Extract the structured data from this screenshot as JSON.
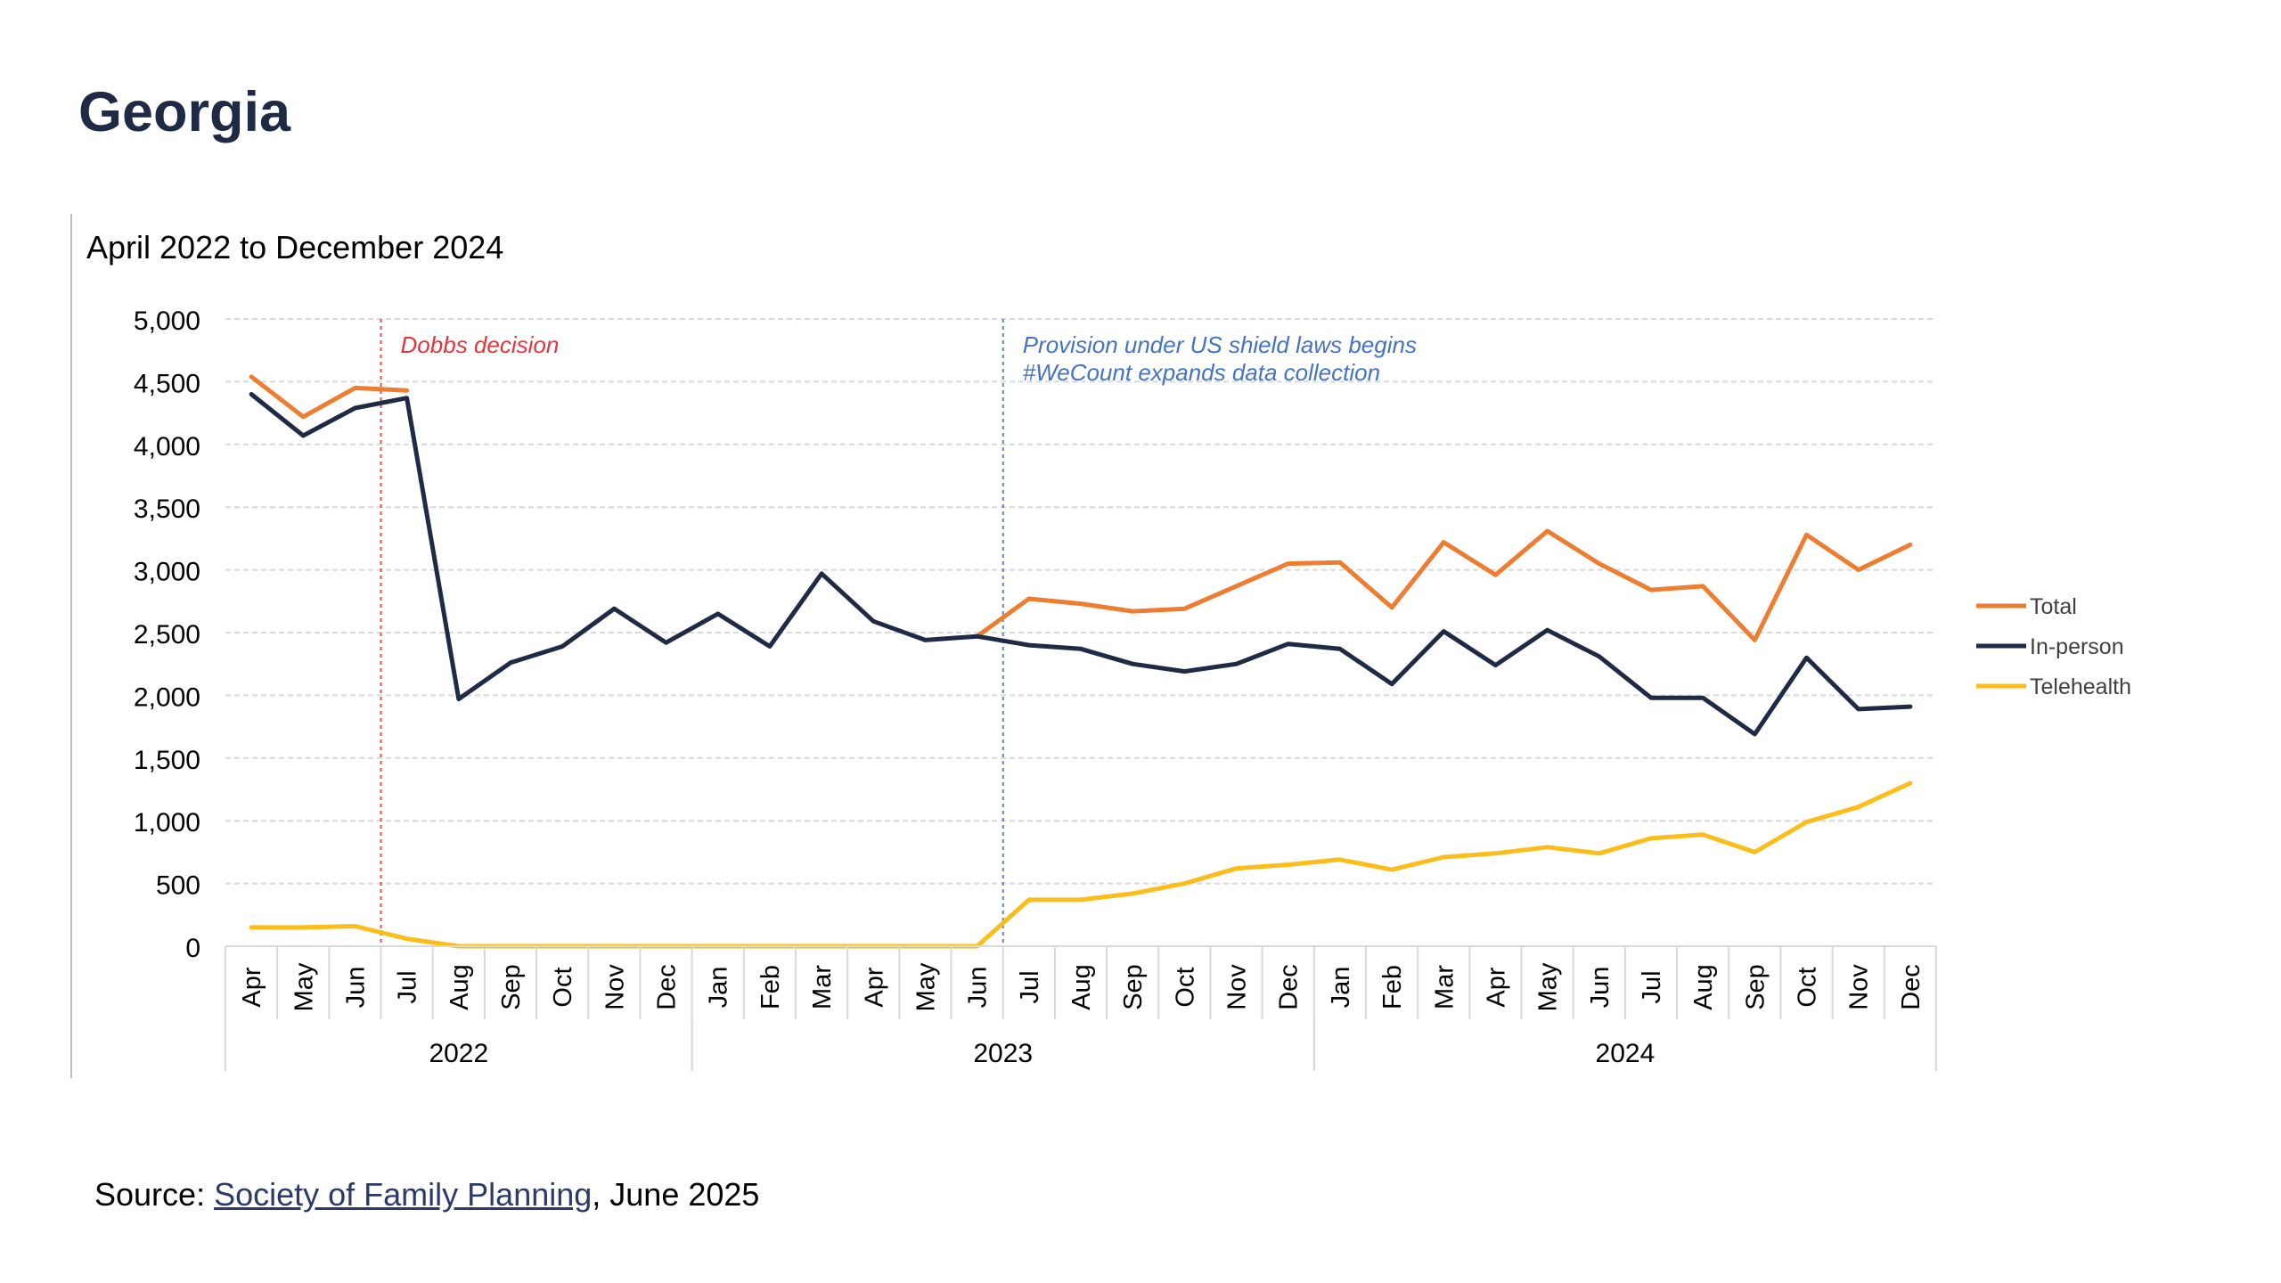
{
  "page": {
    "title": "Georgia"
  },
  "source": {
    "prefix": "Source: ",
    "link_text": "Society of Family Planning",
    "suffix": ", June 2025"
  },
  "colors": {
    "total": "#ee7d31",
    "in_person": "#1f2a44",
    "telehealth": "#fbbd1a",
    "dobbs_line": "#e8323c",
    "shield_line": "#4472c4",
    "grid": "#d9d9d9",
    "axis_text": "#000000"
  },
  "chart_data": {
    "type": "line",
    "title": "April 2022 to December 2024",
    "ylim": [
      0,
      5000
    ],
    "yticks": [
      0,
      500,
      1000,
      1500,
      2000,
      2500,
      3000,
      3500,
      4000,
      4500,
      5000
    ],
    "ytick_labels": [
      "0",
      "500",
      "1,000",
      "1,500",
      "2,000",
      "2,500",
      "3,000",
      "3,500",
      "4,000",
      "4,500",
      "5,000"
    ],
    "grid": true,
    "legend_position": "right",
    "categories": [
      "Apr",
      "May",
      "Jun",
      "Jul",
      "Aug",
      "Sep",
      "Oct",
      "Nov",
      "Dec",
      "Jan",
      "Feb",
      "Mar",
      "Apr",
      "May",
      "Jun",
      "Jul",
      "Aug",
      "Sep",
      "Oct",
      "Nov",
      "Dec",
      "Jan",
      "Feb",
      "Mar",
      "Apr",
      "May",
      "Jun",
      "Jul",
      "Aug",
      "Sep",
      "Oct",
      "Nov",
      "Dec"
    ],
    "year_groups": [
      {
        "label": "2022",
        "start": 0,
        "end": 8
      },
      {
        "label": "2023",
        "start": 9,
        "end": 20
      },
      {
        "label": "2024",
        "start": 21,
        "end": 32
      }
    ],
    "series": [
      {
        "name": "Total",
        "color": "#ee7d31",
        "values": [
          4540,
          4220,
          4450,
          4430,
          null,
          null,
          null,
          null,
          null,
          null,
          null,
          null,
          null,
          null,
          2470,
          2770,
          2730,
          2670,
          2690,
          2870,
          3050,
          3060,
          2700,
          3220,
          2960,
          3310,
          3050,
          2840,
          2870,
          2440,
          3280,
          3000,
          3200
        ]
      },
      {
        "name": "In-person",
        "color": "#1f2a44",
        "values": [
          4400,
          4070,
          4290,
          4370,
          1970,
          2260,
          2390,
          2690,
          2420,
          2650,
          2390,
          2970,
          2590,
          2440,
          2470,
          2400,
          2370,
          2250,
          2190,
          2250,
          2410,
          2370,
          2090,
          2510,
          2240,
          2520,
          2310,
          1980,
          1980,
          1690,
          2300,
          1890,
          1910
        ]
      },
      {
        "name": "Telehealth",
        "color": "#fbbd1a",
        "values": [
          150,
          150,
          160,
          60,
          0,
          0,
          0,
          0,
          0,
          0,
          0,
          0,
          0,
          0,
          0,
          370,
          370,
          420,
          500,
          620,
          650,
          690,
          610,
          710,
          740,
          790,
          740,
          860,
          890,
          750,
          990,
          1110,
          1300
        ]
      }
    ],
    "annotations": [
      {
        "text_lines": [
          "Dobbs decision"
        ],
        "position_index": 2.5,
        "color": "#e8323c"
      },
      {
        "text_lines": [
          "Provision under US shield laws begins",
          "#WeCount expands data collection"
        ],
        "position_index": 14.5,
        "color": "#4472c4"
      }
    ]
  }
}
